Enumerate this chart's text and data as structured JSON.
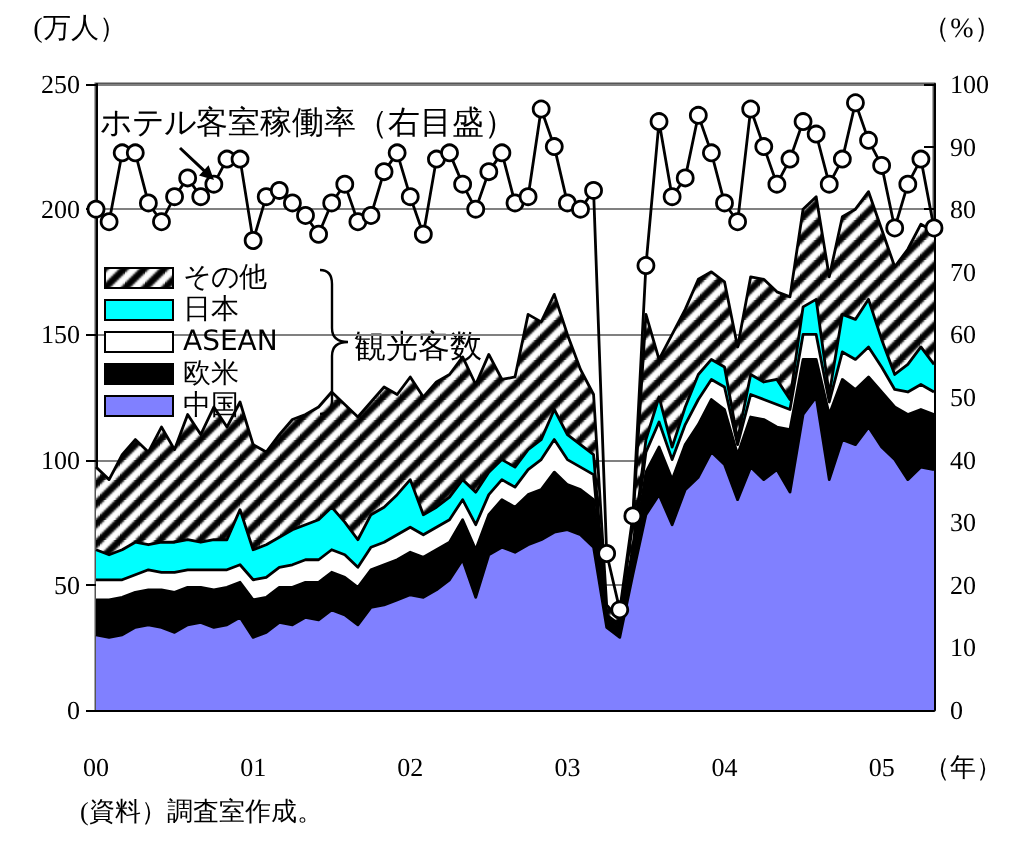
{
  "chart_data": {
    "type": "area",
    "stacked": true,
    "ylabel": "(万人）",
    "y2label": "（%）",
    "xlabel": "（年）",
    "categories": [
      "00",
      null,
      null,
      null,
      null,
      null,
      null,
      null,
      null,
      null,
      null,
      null,
      "01",
      null,
      null,
      null,
      null,
      null,
      null,
      null,
      null,
      null,
      null,
      null,
      "02",
      null,
      null,
      null,
      null,
      null,
      null,
      null,
      null,
      null,
      null,
      null,
      "03",
      null,
      null,
      null,
      null,
      null,
      null,
      null,
      null,
      null,
      null,
      null,
      "04",
      null,
      null,
      null,
      null,
      null,
      null,
      null,
      null,
      null,
      null,
      null,
      "05",
      null,
      null,
      null,
      null
    ],
    "series": [
      {
        "name": "中国",
        "color": "#8080ff",
        "values": [
          30,
          29,
          30,
          33,
          34,
          33,
          31,
          34,
          35,
          33,
          34,
          37,
          29,
          31,
          35,
          34,
          37,
          36,
          40,
          38,
          34,
          41,
          42,
          44,
          46,
          45,
          48,
          52,
          60,
          45,
          62,
          65,
          63,
          66,
          68,
          71,
          72,
          70,
          65,
          33,
          29,
          54,
          78,
          86,
          74,
          88,
          93,
          103,
          98,
          84,
          97,
          92,
          96,
          87,
          118,
          125,
          92,
          108,
          106,
          113,
          105,
          100,
          92,
          97,
          96
        ]
      },
      {
        "name": "欧米",
        "color": "#000000",
        "values": [
          14,
          15,
          15,
          14,
          14,
          15,
          16,
          15,
          14,
          15,
          15,
          14,
          15,
          14,
          14,
          15,
          14,
          15,
          15,
          15,
          15,
          15,
          16,
          16,
          17,
          16,
          16,
          15,
          16,
          19,
          16,
          19,
          18,
          20,
          20,
          24,
          18,
          18,
          19,
          3,
          3,
          6,
          17,
          19,
          18,
          18,
          21,
          21,
          22,
          18,
          20,
          24,
          17,
          25,
          22,
          15,
          26,
          24,
          22,
          20,
          22,
          21,
          26,
          23,
          22
        ]
      },
      {
        "name": "ASEAN",
        "color": "#ffffff",
        "values": [
          8,
          8,
          7,
          7,
          8,
          7,
          8,
          7,
          7,
          8,
          7,
          7,
          8,
          8,
          8,
          9,
          9,
          9,
          9,
          9,
          8,
          9,
          9,
          10,
          10,
          9,
          9,
          9,
          8,
          10,
          8,
          8,
          8,
          10,
          12,
          13,
          10,
          9,
          10,
          1,
          1,
          3,
          8,
          10,
          8,
          8,
          10,
          8,
          9,
          4,
          9,
          8,
          9,
          8,
          10,
          10,
          5,
          11,
          12,
          12,
          10,
          7,
          9,
          10,
          9
        ]
      },
      {
        "name": "日本",
        "color": "#00ffff",
        "values": [
          12,
          10,
          12,
          13,
          10,
          12,
          12,
          12,
          11,
          12,
          12,
          22,
          12,
          13,
          12,
          14,
          14,
          16,
          17,
          13,
          11,
          13,
          14,
          16,
          19,
          8,
          8,
          9,
          8,
          13,
          9,
          8,
          8,
          8,
          8,
          12,
          10,
          9,
          8,
          1,
          1,
          2,
          5,
          10,
          5,
          7,
          10,
          8,
          8,
          2,
          8,
          7,
          10,
          4,
          11,
          14,
          3,
          15,
          16,
          19,
          11,
          6,
          11,
          15,
          11
        ]
      },
      {
        "name": "その他",
        "color": "#000000",
        "values": [
          33,
          30,
          38,
          41,
          37,
          46,
          37,
          50,
          43,
          53,
          45,
          43,
          42,
          37,
          41,
          44,
          44,
          45,
          46,
          47,
          49,
          45,
          48,
          40,
          41,
          47,
          50,
          49,
          49,
          43,
          47,
          32,
          36,
          54,
          47,
          46,
          40,
          30,
          24,
          4,
          2,
          10,
          50,
          15,
          45,
          39,
          38,
          35,
          34,
          37,
          39,
          41,
          35,
          41,
          39,
          41,
          47,
          39,
          44,
          43,
          44,
          43,
          46,
          49,
          53
        ]
      },
      {
        "name": "ホテル客室稼働率（右目盛）",
        "type": "line",
        "axis": "y2",
        "color": "#000000",
        "marker": "circle",
        "values": [
          80,
          78,
          89,
          89,
          81,
          78,
          82,
          85,
          82,
          84,
          88,
          88,
          75,
          82,
          83,
          81,
          79,
          76,
          81,
          84,
          78,
          79,
          86,
          89,
          82,
          76,
          88,
          89,
          84,
          80,
          86,
          89,
          81,
          82,
          96,
          90,
          81,
          80,
          83,
          25,
          16,
          31,
          71,
          94,
          82,
          85,
          95,
          89,
          81,
          78,
          96,
          90,
          84,
          88,
          94,
          92,
          84,
          88,
          97,
          91,
          87,
          77,
          84,
          88,
          77
        ]
      }
    ],
    "ylim": [
      0,
      250
    ],
    "yticks": [
      0,
      50,
      100,
      150,
      200,
      250
    ],
    "y2lim": [
      0,
      100
    ],
    "y2ticks": [
      0,
      10,
      20,
      30,
      40,
      50,
      60,
      70,
      80,
      90,
      100
    ],
    "grid": "y",
    "legend": "top left",
    "annotations": [
      "観光客数",
      "(資料）調査室作成。"
    ]
  }
}
